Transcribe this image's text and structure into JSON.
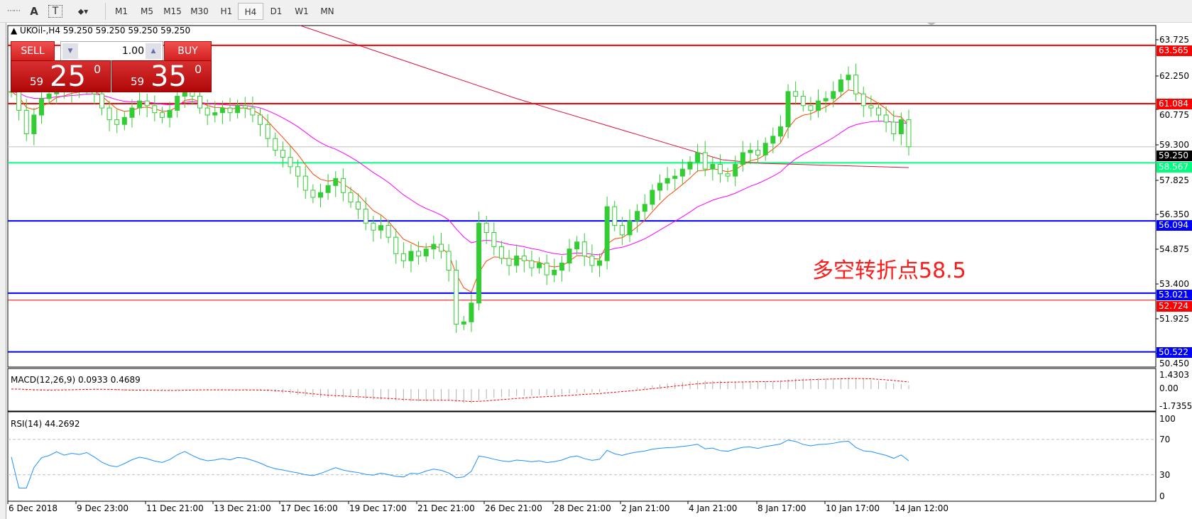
{
  "toolbar": {
    "tools": [
      "A",
      "T"
    ],
    "timeframes": [
      "M1",
      "M5",
      "M15",
      "M30",
      "H1",
      "H4",
      "D1",
      "W1",
      "MN"
    ],
    "active_timeframe": "H4"
  },
  "chart": {
    "symbol_line": "UKOil-,H4  59.250 59.250 59.250 59.250",
    "annotation": "多空转折点58.5"
  },
  "trade_panel": {
    "sell_label": "SELL",
    "buy_label": "BUY",
    "lot": "1.00",
    "sell_price": {
      "big": "59",
      "main": "25",
      "sup": "0"
    },
    "buy_price": {
      "big": "59",
      "main": "35",
      "sup": "0"
    }
  },
  "price_axis": {
    "ticks": [
      "63.725",
      "62.250",
      "60.775",
      "59.300",
      "57.825",
      "56.350",
      "54.875",
      "53.400",
      "51.925",
      "50.450"
    ],
    "levels": [
      {
        "value": "63.565",
        "color": "#ff0000"
      },
      {
        "value": "61.084",
        "color": "#ff0000"
      },
      {
        "value": "59.250",
        "color": "#000000",
        "line": "#c0c0c0"
      },
      {
        "value": "58.567",
        "color": "#00ff7f"
      },
      {
        "value": "56.094",
        "color": "#0000ff"
      },
      {
        "value": "53.021",
        "color": "#0000ff"
      },
      {
        "value": "52.724",
        "color": "#ff0000"
      },
      {
        "value": "50.522",
        "color": "#0000ff"
      }
    ]
  },
  "macd": {
    "label": "MACD(12,26,9) 0.0933 0.4689",
    "ticks": [
      "1.4303",
      "0.00",
      "-1.7355"
    ]
  },
  "rsi": {
    "label": "RSI(14) 44.2692",
    "ticks": [
      "100",
      "70",
      "30",
      "0"
    ]
  },
  "time_axis": [
    "6 Dec 2018",
    "9 Dec 23:00",
    "11 Dec 21:00",
    "13 Dec 21:00",
    "17 Dec 16:00",
    "19 Dec 17:00",
    "21 Dec 21:00",
    "26 Dec 21:00",
    "28 Dec 21:00",
    "2 Jan 21:00",
    "4 Jan 21:00",
    "8 Jan 17:00",
    "10 Jan 17:00",
    "14 Jan 12:00"
  ],
  "chart_data": {
    "type": "candlestick",
    "symbol": "UKOil-",
    "timeframe": "H4",
    "ylim": [
      50.45,
      63.725
    ],
    "close": [
      61.6,
      60.8,
      59.8,
      60.6,
      61.3,
      61.5,
      61.9,
      61.6,
      61.8,
      61.7,
      61.9,
      61.5,
      60.9,
      60.4,
      60.2,
      60.5,
      60.9,
      61.2,
      61.0,
      60.7,
      60.5,
      60.8,
      61.4,
      61.9,
      61.4,
      60.9,
      60.6,
      60.7,
      60.9,
      60.7,
      61.0,
      60.9,
      60.6,
      60.2,
      59.6,
      59.1,
      58.8,
      58.4,
      58.0,
      57.4,
      57.1,
      57.3,
      57.6,
      57.9,
      57.3,
      56.9,
      56.6,
      56.0,
      55.7,
      55.9,
      55.4,
      54.7,
      54.4,
      54.8,
      54.6,
      54.9,
      55.1,
      54.8,
      54.0,
      51.7,
      51.8,
      52.6,
      56.0,
      55.6,
      55.0,
      54.5,
      54.2,
      54.6,
      54.4,
      54.1,
      54.3,
      53.8,
      54.0,
      54.3,
      54.9,
      55.2,
      54.6,
      54.2,
      54.4,
      56.7,
      55.9,
      55.5,
      56.1,
      56.5,
      56.8,
      57.4,
      57.7,
      57.9,
      58.0,
      58.3,
      58.6,
      59.0,
      58.3,
      58.5,
      58.1,
      58.0,
      58.5,
      59.0,
      59.1,
      58.9,
      59.4,
      59.7,
      60.1,
      61.6,
      61.4,
      61.0,
      60.8,
      61.2,
      61.3,
      61.6,
      62.1,
      62.3,
      61.5,
      61.0,
      60.9,
      60.6,
      60.3,
      59.8,
      60.4,
      59.25
    ],
    "colors": {
      "up": "#32cd32",
      "down": "#32cd32",
      "ma_fast": "#ff4500",
      "ma_mid": "#ff00ff",
      "ma_slow": "#dc143c",
      "rsi": "#1e90ff",
      "macd_signal": "#ff0000"
    }
  }
}
